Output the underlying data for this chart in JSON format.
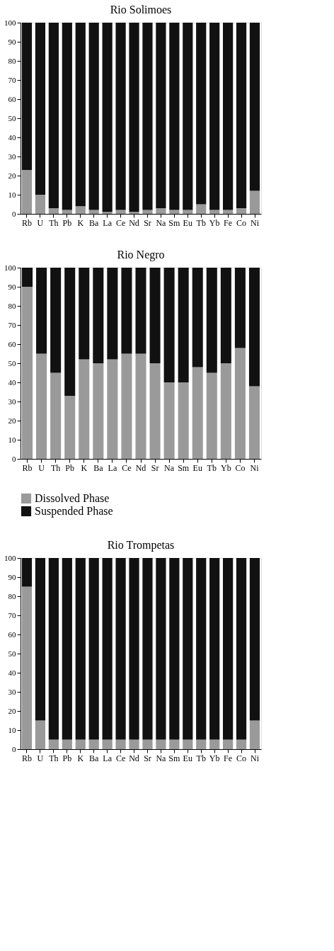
{
  "chart_data": [
    {
      "type": "bar",
      "stacked": true,
      "title": "Rio Solimoes",
      "categories": [
        "Rb",
        "U",
        "Th",
        "Pb",
        "K",
        "Ba",
        "La",
        "Ce",
        "Nd",
        "Sr",
        "Na",
        "Sm",
        "Eu",
        "Tb",
        "Yb",
        "Fe",
        "Co",
        "Ni"
      ],
      "ylim": [
        0,
        100
      ],
      "yticks": [
        0,
        10,
        20,
        30,
        40,
        50,
        60,
        70,
        80,
        90,
        100
      ],
      "grid": false,
      "series": [
        {
          "color": "#9a9a9a",
          "values": [
            23,
            10,
            3,
            2,
            4,
            2,
            1,
            2,
            1,
            2,
            3,
            2,
            2,
            5,
            2,
            2,
            3,
            12
          ]
        },
        {
          "color": "#111111",
          "values": [
            77,
            90,
            97,
            98,
            96,
            98,
            99,
            98,
            99,
            98,
            97,
            98,
            98,
            95,
            98,
            98,
            97,
            88
          ]
        }
      ]
    },
    {
      "type": "bar",
      "stacked": true,
      "title": "Rio Negro",
      "categories": [
        "Rb",
        "U",
        "Th",
        "Pb",
        "K",
        "Ba",
        "La",
        "Ce",
        "Nd",
        "Sr",
        "Na",
        "Sm",
        "Eu",
        "Tb",
        "Yb",
        "Co",
        "Ni"
      ],
      "ylim": [
        0,
        100
      ],
      "yticks": [
        0,
        10,
        20,
        30,
        40,
        50,
        60,
        70,
        80,
        90,
        100
      ],
      "grid": false,
      "legend": "bottom",
      "series": [
        {
          "name": "Dissolved Phase",
          "color": "#9a9a9a",
          "values": [
            90,
            55,
            45,
            33,
            52,
            50,
            52,
            55,
            55,
            50,
            40,
            40,
            48,
            45,
            50,
            58,
            38
          ]
        },
        {
          "name": "Suspended Phase",
          "color": "#111111",
          "values": [
            10,
            45,
            55,
            67,
            48,
            50,
            48,
            45,
            45,
            50,
            60,
            60,
            52,
            55,
            50,
            42,
            62
          ]
        }
      ]
    },
    {
      "type": "bar",
      "stacked": true,
      "title": "Rio Trompetas",
      "categories": [
        "Rb",
        "U",
        "Th",
        "Pb",
        "K",
        "Ba",
        "La",
        "Ce",
        "Nd",
        "Sr",
        "Na",
        "Sm",
        "Eu",
        "Tb",
        "Yb",
        "Fe",
        "Co",
        "Ni"
      ],
      "ylim": [
        0,
        100
      ],
      "yticks": [
        0,
        10,
        20,
        30,
        40,
        50,
        60,
        70,
        80,
        90,
        100
      ],
      "grid": false,
      "series": [
        {
          "color": "#9a9a9a",
          "values": [
            85,
            15,
            5,
            5,
            5,
            5,
            5,
            5,
            5,
            5,
            5,
            5,
            5,
            5,
            5,
            5,
            5,
            15
          ]
        },
        {
          "color": "#111111",
          "values": [
            15,
            85,
            95,
            95,
            95,
            95,
            95,
            95,
            95,
            95,
            95,
            95,
            95,
            95,
            95,
            95,
            95,
            85
          ]
        }
      ]
    }
  ]
}
